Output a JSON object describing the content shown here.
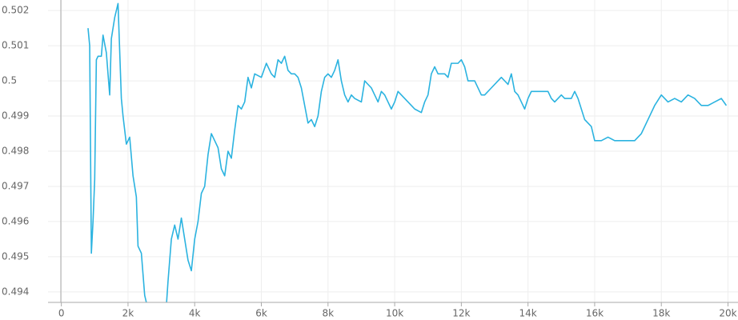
{
  "chart_data": {
    "type": "line",
    "x": [
      800,
      850,
      900,
      950,
      1000,
      1050,
      1100,
      1200,
      1250,
      1350,
      1450,
      1500,
      1600,
      1700,
      1800,
      1850,
      1950,
      2050,
      2150,
      2250,
      2300,
      2400,
      2500,
      2550,
      2700,
      3000,
      3150,
      3200,
      3300,
      3400,
      3500,
      3600,
      3700,
      3800,
      3900,
      4000,
      4100,
      4200,
      4300,
      4400,
      4500,
      4600,
      4700,
      4800,
      4900,
      5000,
      5100,
      5200,
      5300,
      5400,
      5500,
      5600,
      5700,
      5800,
      6000,
      6150,
      6300,
      6400,
      6500,
      6600,
      6700,
      6800,
      6900,
      7000,
      7100,
      7200,
      7300,
      7400,
      7500,
      7600,
      7700,
      7800,
      7900,
      8000,
      8100,
      8200,
      8300,
      8400,
      8500,
      8600,
      8700,
      8800,
      9000,
      9100,
      9200,
      9300,
      9400,
      9500,
      9600,
      9700,
      9800,
      9900,
      10000,
      10100,
      10200,
      10300,
      10400,
      10500,
      10600,
      10800,
      10900,
      11000,
      11100,
      11200,
      11300,
      11500,
      11600,
      11700,
      11900,
      12000,
      12100,
      12200,
      12400,
      12600,
      12700,
      12900,
      13100,
      13200,
      13400,
      13500,
      13600,
      13700,
      13800,
      13900,
      14000,
      14100,
      14200,
      14400,
      14600,
      14700,
      14800,
      15000,
      15100,
      15300,
      15400,
      15500,
      15700,
      15900,
      16000,
      16200,
      16400,
      16600,
      16800,
      17000,
      17200,
      17400,
      17600,
      17800,
      18000,
      18200,
      18400,
      18600,
      18800,
      19000,
      19200,
      19400,
      19600,
      19800,
      19950
    ],
    "series": [
      {
        "color": "#2bb3e0",
        "values": [
          0.5015,
          0.501,
          0.4951,
          0.496,
          0.4972,
          0.5006,
          0.5007,
          0.5007,
          0.5013,
          0.5008,
          0.4996,
          0.5012,
          0.5018,
          0.5022,
          0.4995,
          0.499,
          0.4982,
          0.4984,
          0.4973,
          0.4967,
          0.4953,
          0.4951,
          0.4939,
          0.4937,
          0.4935,
          0.493,
          0.4936,
          0.4943,
          0.4955,
          0.4959,
          0.4955,
          0.4961,
          0.4955,
          0.4949,
          0.4946,
          0.4955,
          0.496,
          0.4968,
          0.497,
          0.4979,
          0.4985,
          0.4983,
          0.4981,
          0.4975,
          0.4973,
          0.498,
          0.4978,
          0.4986,
          0.4993,
          0.4992,
          0.4994,
          0.5001,
          0.4998,
          0.5002,
          0.5001,
          0.5005,
          0.5002,
          0.5001,
          0.5006,
          0.5005,
          0.5007,
          0.5003,
          0.5002,
          0.5002,
          0.5001,
          0.4998,
          0.4993,
          0.4988,
          0.4989,
          0.4987,
          0.499,
          0.4997,
          0.5001,
          0.5002,
          0.5001,
          0.5003,
          0.5006,
          0.5,
          0.4996,
          0.4994,
          0.4996,
          0.4995,
          0.4994,
          0.5,
          0.4999,
          0.4998,
          0.4996,
          0.4994,
          0.4997,
          0.4996,
          0.4994,
          0.4992,
          0.4994,
          0.4997,
          0.4996,
          0.4995,
          0.4994,
          0.4993,
          0.4992,
          0.4991,
          0.4994,
          0.4996,
          0.5002,
          0.5004,
          0.5002,
          0.5002,
          0.5001,
          0.5005,
          0.5005,
          0.5006,
          0.5004,
          0.5,
          0.5,
          0.4996,
          0.4996,
          0.4998,
          0.5,
          0.5001,
          0.4999,
          0.5002,
          0.4997,
          0.4996,
          0.4994,
          0.4992,
          0.4995,
          0.4997,
          0.4997,
          0.4997,
          0.4997,
          0.4995,
          0.4994,
          0.4996,
          0.4995,
          0.4995,
          0.4997,
          0.4995,
          0.4989,
          0.4987,
          0.4983,
          0.4983,
          0.4984,
          0.4983,
          0.4983,
          0.4983,
          0.4983,
          0.4985,
          0.4989,
          0.4993,
          0.4996,
          0.4994,
          0.4995,
          0.4994,
          0.4996,
          0.4995,
          0.4993,
          0.4993,
          0.4994,
          0.4995,
          0.4993
        ]
      }
    ],
    "xlim": [
      -400,
      20300
    ],
    "ylim": [
      0.4937,
      0.5023
    ],
    "xticks": [
      0,
      {
        "value": 2000,
        "label": "2k"
      },
      {
        "value": 4000,
        "label": "4k"
      },
      {
        "value": 6000,
        "label": "6k"
      },
      {
        "value": 8000,
        "label": "8k"
      },
      {
        "value": 10000,
        "label": "10k"
      },
      {
        "value": 12000,
        "label": "12k"
      },
      {
        "value": 14000,
        "label": "14k"
      },
      {
        "value": 16000,
        "label": "16k"
      },
      {
        "value": 18000,
        "label": "18k"
      },
      {
        "value": 20000,
        "label": "20k"
      }
    ],
    "yticks": [
      0.494,
      0.495,
      0.496,
      0.497,
      0.498,
      0.499,
      0.5,
      0.501,
      0.502
    ],
    "grid": true
  }
}
